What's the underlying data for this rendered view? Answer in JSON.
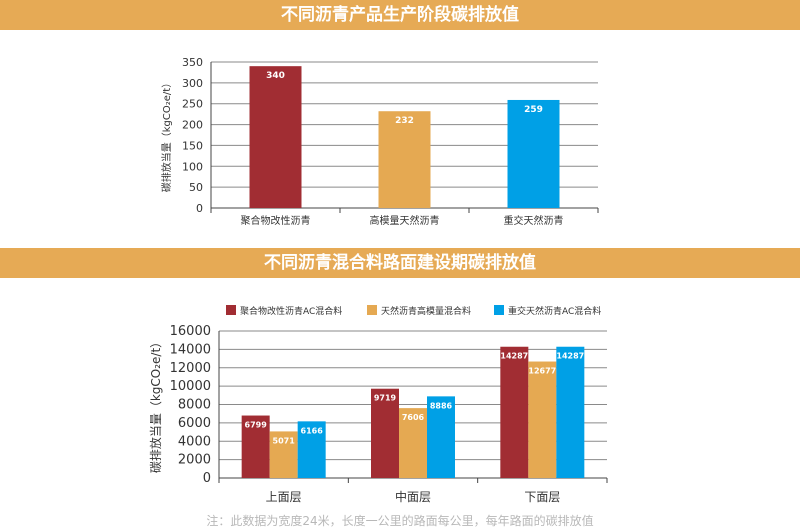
{
  "banners": [
    "不同沥青产品生产阶段碳排放值",
    "不同沥青混合料路面建设期碳排放值"
  ],
  "note": "注：此数据为宽度24米，长度一公里的路面每公里，每年路面的碳排放值",
  "chart_data": [
    {
      "type": "bar",
      "title": "不同沥青产品生产阶段碳排放值",
      "ylabel": "碳排放当量（kgCO₂e/t）",
      "xlabel": "",
      "ylim": [
        0,
        350
      ],
      "yticks": [
        0,
        50,
        100,
        150,
        200,
        250,
        300,
        350
      ],
      "grid": true,
      "categories": [
        "聚合物改性沥青",
        "高模量天然沥青",
        "重交天然沥青"
      ],
      "values": [
        340,
        232,
        259
      ],
      "colors": [
        "#a12d33",
        "#e5a952",
        "#00a0e6"
      ]
    },
    {
      "type": "bar",
      "title": "不同沥青混合料路面建设期碳排放值",
      "ylabel": "碳排放当量（kgCO₂e/t）",
      "xlabel": "",
      "ylim": [
        0,
        16000
      ],
      "yticks": [
        0,
        2000,
        4000,
        6000,
        8000,
        10000,
        12000,
        14000,
        16000
      ],
      "grid": true,
      "legend": "top",
      "categories": [
        "上面层",
        "中面层",
        "下面层"
      ],
      "series": [
        {
          "name": "聚合物改性沥青AC混合料",
          "values": [
            6799,
            9719,
            14287
          ],
          "color": "#a12d33"
        },
        {
          "name": "天然沥青高模量混合料",
          "values": [
            5071,
            7606,
            12677
          ],
          "color": "#e5a952"
        },
        {
          "name": "重交天然沥青AC混合料",
          "values": [
            6166,
            8886,
            14287
          ],
          "color": "#00a0e6"
        }
      ]
    }
  ]
}
